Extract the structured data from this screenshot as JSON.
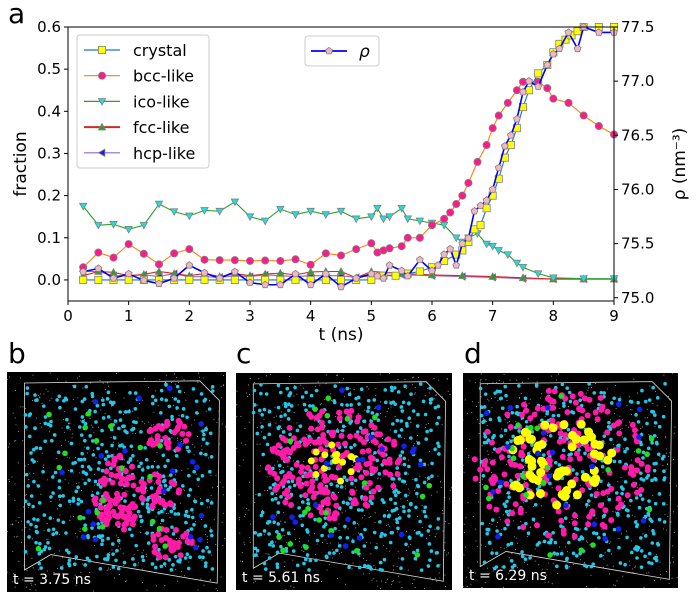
{
  "panel_labels": {
    "a": "a",
    "b": "b",
    "c": "c",
    "d": "d"
  },
  "snapshots": [
    {
      "label": "b",
      "time": "t = 3.75 ns"
    },
    {
      "label": "c",
      "time": "t = 5.61 ns"
    },
    {
      "label": "d",
      "time": "t = 6.29 ns"
    }
  ],
  "colors": {
    "crystal_atoms": "#ffff00",
    "bcc_atoms": "#ff1aa8",
    "ico_atoms": "#22c8e8",
    "fcc_atoms": "#22dd22",
    "hcp_atoms": "#1122ee",
    "background": "#000000"
  },
  "chart_data": {
    "type": "line",
    "xlabel": "t (ns)",
    "ylabel": "fraction",
    "ylabel_right": "ρ (nm⁻³)",
    "xlim": [
      0,
      9
    ],
    "ylim": [
      -0.05,
      0.6
    ],
    "ylim_right": [
      74.97,
      77.5
    ],
    "xticks": [
      "0",
      "1",
      "2",
      "3",
      "4",
      "5",
      "6",
      "7",
      "8",
      "9"
    ],
    "yticks": [
      "0.0",
      "0.1",
      "0.2",
      "0.3",
      "0.4",
      "0.5",
      "0.6"
    ],
    "yticks_right": [
      "75.0",
      "75.5",
      "76.0",
      "76.5",
      "77.0",
      "77.5"
    ],
    "grid": false,
    "legend_placement": "top-left",
    "series": [
      {
        "name": "crystal",
        "axis": "left",
        "line": "#1f77b4",
        "marker": "square",
        "fill": "#ffff00",
        "x": [
          0.25,
          0.5,
          0.75,
          1,
          1.25,
          1.5,
          1.75,
          2,
          2.25,
          2.5,
          2.75,
          3,
          3.25,
          3.5,
          3.75,
          4,
          4.25,
          4.5,
          4.75,
          5,
          5.2,
          5.4,
          5.6,
          5.8,
          6.0,
          6.2,
          6.4,
          6.5,
          6.6,
          6.7,
          6.8,
          6.9,
          7.0,
          7.1,
          7.2,
          7.3,
          7.4,
          7.5,
          7.6,
          7.75,
          7.9,
          8.0,
          8.1,
          8.2,
          8.3,
          8.4,
          8.5,
          8.75,
          9.0
        ],
        "y": [
          0,
          0,
          0,
          0,
          0,
          0,
          0,
          0,
          0,
          0,
          0,
          0,
          0,
          0,
          0,
          0,
          0,
          0,
          0,
          0,
          0.01,
          0.01,
          0.015,
          0.02,
          0.03,
          0.045,
          0.06,
          0.07,
          0.09,
          0.12,
          0.13,
          0.17,
          0.2,
          0.24,
          0.29,
          0.32,
          0.36,
          0.41,
          0.45,
          0.49,
          0.51,
          0.54,
          0.56,
          0.57,
          0.58,
          0.59,
          0.6,
          0.6,
          0.6
        ]
      },
      {
        "name": "bcc-like",
        "axis": "left",
        "line": "#ff7f0e",
        "marker": "circle",
        "fill": "#ff1a8c",
        "x": [
          0.25,
          0.5,
          0.75,
          1,
          1.25,
          1.5,
          1.75,
          2,
          2.25,
          2.5,
          2.75,
          3,
          3.25,
          3.5,
          3.75,
          4,
          4.25,
          4.5,
          4.75,
          5,
          5.1,
          5.2,
          5.3,
          5.5,
          5.6,
          5.8,
          6.0,
          6.2,
          6.3,
          6.4,
          6.5,
          6.6,
          6.75,
          6.9,
          7.0,
          7.1,
          7.25,
          7.4,
          7.5,
          7.75,
          7.9,
          8.0,
          8.25,
          8.5,
          8.75,
          9.0
        ],
        "y": [
          0.03,
          0.065,
          0.053,
          0.085,
          0.062,
          0.037,
          0.063,
          0.073,
          0.048,
          0.047,
          0.047,
          0.045,
          0.046,
          0.045,
          0.049,
          0.036,
          0.063,
          0.058,
          0.073,
          0.087,
          0.065,
          0.07,
          0.075,
          0.08,
          0.1,
          0.1,
          0.13,
          0.145,
          0.16,
          0.18,
          0.2,
          0.23,
          0.28,
          0.32,
          0.36,
          0.39,
          0.42,
          0.45,
          0.47,
          0.47,
          0.455,
          0.43,
          0.42,
          0.39,
          0.365,
          0.345
        ]
      },
      {
        "name": "ico-like",
        "axis": "left",
        "line": "#2ca02c",
        "marker": "triangle-down",
        "fill": "#22dddd",
        "x": [
          0.25,
          0.5,
          0.75,
          1,
          1.25,
          1.5,
          1.75,
          2,
          2.25,
          2.5,
          2.75,
          3,
          3.25,
          3.5,
          3.75,
          4,
          4.25,
          4.5,
          4.75,
          5,
          5.1,
          5.2,
          5.3,
          5.5,
          5.6,
          5.8,
          6.0,
          6.2,
          6.4,
          6.5,
          6.6,
          6.75,
          6.9,
          7.0,
          7.1,
          7.25,
          7.4,
          7.5,
          7.75,
          8.0,
          8.5,
          9.0
        ],
        "y": [
          0.175,
          0.13,
          0.132,
          0.12,
          0.13,
          0.18,
          0.162,
          0.152,
          0.165,
          0.163,
          0.185,
          0.15,
          0.14,
          0.168,
          0.155,
          0.163,
          0.155,
          0.163,
          0.145,
          0.15,
          0.17,
          0.145,
          0.15,
          0.17,
          0.145,
          0.14,
          0.135,
          0.13,
          0.1,
          0.09,
          0.1,
          0.11,
          0.085,
          0.08,
          0.07,
          0.06,
          0.04,
          0.03,
          0.015,
          0.005,
          0.003,
          0.003
        ]
      },
      {
        "name": "fcc-like",
        "axis": "left",
        "line": "#d62728",
        "marker": "triangle-up",
        "fill": "#2ca02c",
        "x": [
          0.25,
          0.5,
          0.75,
          1,
          1.25,
          1.5,
          1.75,
          2,
          2.25,
          2.5,
          2.75,
          3,
          3.25,
          3.5,
          3.75,
          4,
          4.25,
          4.5,
          4.75,
          5,
          5.5,
          6.0,
          6.5,
          7.0,
          7.5,
          8.0,
          8.5,
          9.0
        ],
        "y": [
          0.01,
          0.02,
          0.018,
          0.01,
          0.013,
          0.02,
          0.015,
          0.01,
          0.015,
          0.008,
          0.015,
          0.01,
          0.014,
          0.016,
          0.012,
          0.019,
          0.02,
          0.02,
          0.005,
          0.02,
          0.015,
          0.012,
          0.01,
          0.008,
          0.005,
          0.002,
          0.002,
          0.002
        ]
      },
      {
        "name": "hcp-like",
        "axis": "left",
        "line": "#9467bd",
        "marker": "triangle-left",
        "fill": "#1f22dd",
        "x": [
          0.25,
          0.5,
          0.75,
          1,
          1.25,
          1.5,
          1.75,
          2,
          2.25,
          2.5,
          2.75,
          3,
          3.25,
          3.5,
          3.75,
          4,
          4.25,
          4.5,
          4.75,
          5,
          5.5,
          6.0,
          6.5,
          7.0,
          7.5,
          8.0,
          8.5,
          9.0
        ],
        "y": [
          0.02,
          0.02,
          0.01,
          0.01,
          0.012,
          0.008,
          0.015,
          0.007,
          0.008,
          0.006,
          0.01,
          0.008,
          0.012,
          0.01,
          0.008,
          0.01,
          0.01,
          0.01,
          0.006,
          0.01,
          0.012,
          0.01,
          0.008,
          0.006,
          0.003,
          0.002,
          0.002,
          0.002
        ]
      },
      {
        "name": "ρ",
        "axis": "right",
        "line": "#0000ff",
        "marker": "pentagon",
        "fill": "#f4b6c2",
        "x": [
          0.25,
          0.5,
          0.75,
          1,
          1.25,
          1.5,
          1.75,
          2,
          2.25,
          2.5,
          2.75,
          3,
          3.25,
          3.5,
          3.75,
          4,
          4.25,
          4.5,
          4.75,
          5,
          5.1,
          5.2,
          5.3,
          5.5,
          5.6,
          5.8,
          6.0,
          6.1,
          6.2,
          6.3,
          6.4,
          6.5,
          6.6,
          6.7,
          6.8,
          6.9,
          7.0,
          7.1,
          7.2,
          7.3,
          7.4,
          7.5,
          7.6,
          7.75,
          7.9,
          8.0,
          8.1,
          8.25,
          8.4,
          8.5,
          8.75,
          9.0
        ],
        "y": [
          75.24,
          75.27,
          75.18,
          75.22,
          75.16,
          75.13,
          75.18,
          75.3,
          75.23,
          75.18,
          75.24,
          75.14,
          75.12,
          75.12,
          75.22,
          75.12,
          75.22,
          75.1,
          75.18,
          75.22,
          75.2,
          75.18,
          75.3,
          75.25,
          75.2,
          75.35,
          75.25,
          75.3,
          75.4,
          75.45,
          75.3,
          75.5,
          75.55,
          75.8,
          75.85,
          75.9,
          76.0,
          76.2,
          76.4,
          76.5,
          76.65,
          76.9,
          77.0,
          76.95,
          77.15,
          77.25,
          77.3,
          77.45,
          77.3,
          77.5,
          77.45,
          77.45
        ]
      }
    ]
  }
}
